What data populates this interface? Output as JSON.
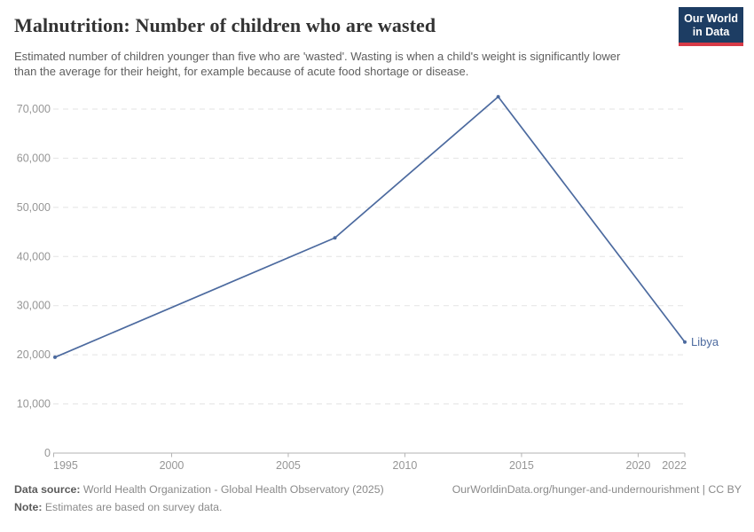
{
  "header": {
    "title": "Malnutrition: Number of children who are wasted",
    "subtitle": "Estimated number of children younger than five who are 'wasted'. Wasting is when a child's weight is significantly lower than the average for their height, for example because of acute food shortage or disease.",
    "logo": {
      "line1": "Our World",
      "line2": "in Data"
    }
  },
  "chart_data": {
    "type": "line",
    "title": "Malnutrition: Number of children who are wasted",
    "xlabel": "",
    "ylabel": "",
    "x": [
      1995,
      2007,
      2014,
      2022
    ],
    "series": [
      {
        "name": "Libya",
        "color": "#4c6a9f",
        "values": [
          19500,
          43800,
          72500,
          22600
        ]
      }
    ],
    "x_tick_values": [
      1995,
      2000,
      2005,
      2010,
      2015,
      2020,
      2022
    ],
    "x_tick_labels": [
      "1995",
      "2000",
      "2005",
      "2010",
      "2015",
      "2020",
      "2022"
    ],
    "y_tick_values": [
      0,
      10000,
      20000,
      30000,
      40000,
      50000,
      60000,
      70000
    ],
    "y_tick_labels": [
      "0",
      "10,000",
      "20,000",
      "30,000",
      "40,000",
      "50,000",
      "60,000",
      "70,000"
    ],
    "xlim": [
      1995,
      2022
    ],
    "ylim": [
      0,
      72500
    ],
    "grid": "horizontal-dashed",
    "legend": "line-end-label"
  },
  "footer": {
    "datasource_label": "Data source:",
    "datasource_text": " World Health Organization - Global Health Observatory (2025)",
    "link_text": "OurWorldinData.org/hunger-and-undernourishment | CC BY",
    "note_label": "Note:",
    "note_text": " Estimates are based on survey data."
  },
  "colors": {
    "line": "#4c6a9f",
    "logo_navy": "#1d3d63",
    "logo_red": "#d73a47",
    "grid": "#e3e3e3",
    "axis": "#b3b3b3",
    "tick_text": "#969696",
    "title_text": "#333333",
    "subtitle_text": "#5e5e5e",
    "footer_text": "#8a8a8a"
  }
}
